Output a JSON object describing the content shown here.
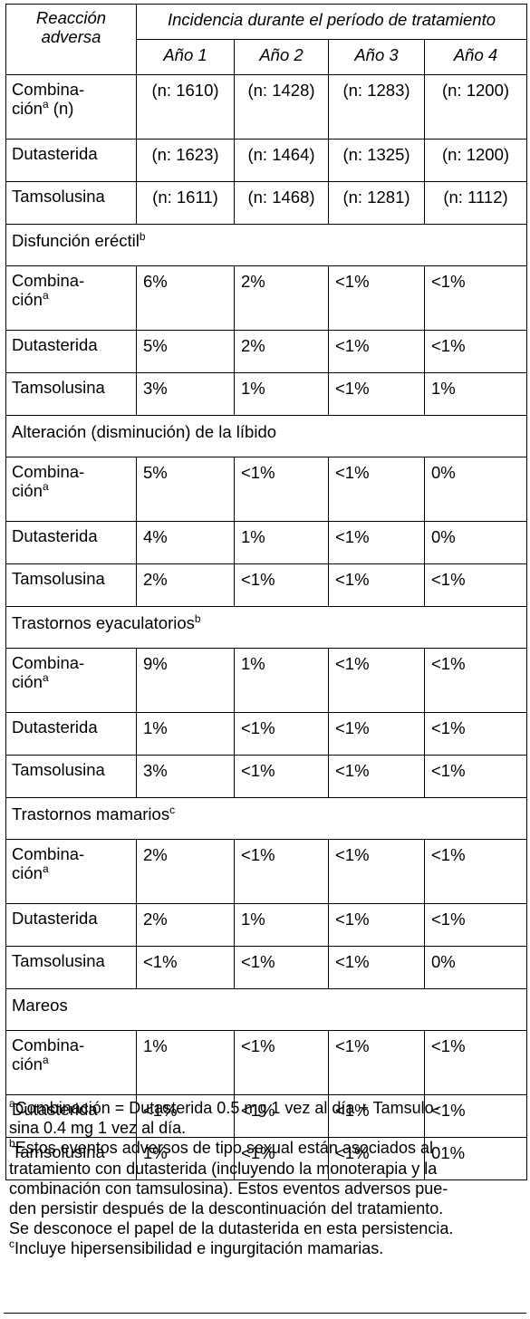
{
  "header": {
    "col_reaction": "Reacción adversa",
    "col_incidence": "Incidencia durante el período de tratamiento",
    "years": [
      "Año 1",
      "Año 2",
      "Año 3",
      "Año 4"
    ]
  },
  "counts": [
    {
      "label": "Combina-\nción",
      "sup": "a",
      "suffix": " (n)",
      "values": [
        "(n: 1610)",
        "(n: 1428)",
        "(n: 1283)",
        "(n: 1200)"
      ]
    },
    {
      "label": "Dutasterida",
      "sup": "",
      "suffix": "",
      "values": [
        "(n: 1623)",
        "(n: 1464)",
        "(n: 1325)",
        "(n: 1200)"
      ]
    },
    {
      "label": "Tamsolusina",
      "sup": "",
      "suffix": "",
      "values": [
        "(n: 1611)",
        "(n: 1468)",
        "(n: 1281)",
        "(n: 1112)"
      ]
    }
  ],
  "sections": [
    {
      "title": "Disfunción eréctil",
      "sup": "b",
      "rows": [
        {
          "label": "Combina-\nción",
          "sup": "a",
          "values": [
            "6%",
            "2%",
            "<1%",
            "<1%"
          ]
        },
        {
          "label": "Dutasterida",
          "sup": "",
          "values": [
            "5%",
            "2%",
            "<1%",
            "<1%"
          ]
        },
        {
          "label": "Tamsolusina",
          "sup": "",
          "values": [
            "3%",
            "1%",
            "<1%",
            "1%"
          ]
        }
      ]
    },
    {
      "title": "Alteración (disminución) de la líbido",
      "sup": "",
      "rows": [
        {
          "label": "Combina-\nción",
          "sup": "a",
          "values": [
            "5%",
            "<1%",
            "<1%",
            "0%"
          ]
        },
        {
          "label": "Dutasterida",
          "sup": "",
          "values": [
            "4%",
            "1%",
            "<1%",
            "0%"
          ]
        },
        {
          "label": "Tamsolusina",
          "sup": "",
          "values": [
            "2%",
            "<1%",
            "<1%",
            "<1%"
          ]
        }
      ]
    },
    {
      "title": "Trastornos eyaculatorios",
      "sup": "b",
      "rows": [
        {
          "label": "Combina-\nción",
          "sup": "a",
          "values": [
            "9%",
            "1%",
            "<1%",
            "<1%"
          ]
        },
        {
          "label": "Dutasterida",
          "sup": "",
          "values": [
            "1%",
            "<1%",
            "<1%",
            "<1%"
          ]
        },
        {
          "label": "Tamsolusina",
          "sup": "",
          "values": [
            "3%",
            "<1%",
            "<1%",
            "<1%"
          ]
        }
      ]
    },
    {
      "title": "Trastornos mamarios",
      "sup": "c",
      "rows": [
        {
          "label": "Combina-\nción",
          "sup": "a",
          "values": [
            "2%",
            "<1%",
            "<1%",
            "<1%"
          ]
        },
        {
          "label": "Dutasterida",
          "sup": "",
          "values": [
            "2%",
            "1%",
            "<1%",
            "<1%"
          ]
        },
        {
          "label": "Tamsolusina",
          "sup": "",
          "values": [
            "<1%",
            "<1%",
            "<1%",
            "0%"
          ]
        }
      ]
    },
    {
      "title": "Mareos",
      "sup": "",
      "rows": [
        {
          "label": "Combina-\nción",
          "sup": "a",
          "values": [
            "1%",
            "<1%",
            "<1%",
            "<1%"
          ]
        },
        {
          "label": "Dutasterida",
          "sup": "",
          "values": [
            "<1%",
            "<1%",
            "<1%",
            "<1%"
          ]
        },
        {
          "label": "Tamsolusina",
          "sup": "",
          "values": [
            "1%",
            "<1%",
            "<1%",
            "01%"
          ]
        }
      ]
    }
  ],
  "footnotes": [
    {
      "mark": "a",
      "lines": [
        "Combinación = Dutasterida 0.5 mg 1 vez al día + Tamsulo-",
        "sina 0.4 mg 1 vez al día."
      ]
    },
    {
      "mark": "b",
      "lines": [
        "Estos eventos adversos de tipo sexual están asociados al",
        "tratamiento con dutasterida (incluyendo la monoterapia y la",
        "combinación con tamsulosina). Estos eventos adversos pue-",
        "den persistir después de la descontinuación del tratamiento.",
        "Se desconoce el papel de la dutasterida en esta persistencia."
      ]
    },
    {
      "mark": "c",
      "lines": [
        "Incluye hipersensibilidad e ingurgitación mamarias."
      ]
    }
  ]
}
